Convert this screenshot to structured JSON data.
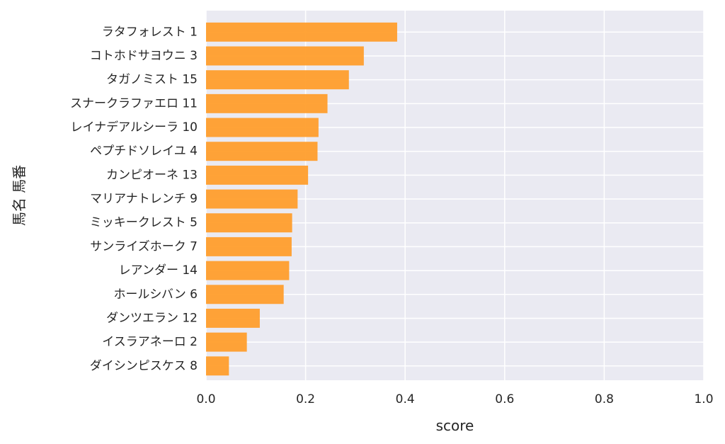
{
  "chart_data": {
    "type": "bar",
    "orientation": "horizontal",
    "categories": [
      "ラタフォレスト 1",
      "コトホドサヨウニ 3",
      "タガノミスト 15",
      "スナークラファエロ 11",
      "レイナデアルシーラ 10",
      "ペプチドソレイユ 4",
      "カンピオーネ 13",
      "マリアナトレンチ 9",
      "ミッキークレスト 5",
      "サンライズホーク 7",
      "レアンダー 14",
      "ホールシバン 6",
      "ダンツエラン 12",
      "イスラアネーロ 2",
      "ダイシンピスケス 8"
    ],
    "values": [
      0.384,
      0.317,
      0.287,
      0.244,
      0.226,
      0.224,
      0.205,
      0.184,
      0.173,
      0.172,
      0.167,
      0.156,
      0.108,
      0.082,
      0.046
    ],
    "xlabel": "score",
    "ylabel": "馬名 馬番",
    "xlim": [
      0.0,
      1.0
    ],
    "xticks": [
      "0.0",
      "0.2",
      "0.4",
      "0.6",
      "0.8",
      "1.0"
    ],
    "grid": true,
    "colors": {
      "bar": "#ff9e2c",
      "background": "#eaeaf2",
      "grid": "#ffffff"
    }
  }
}
